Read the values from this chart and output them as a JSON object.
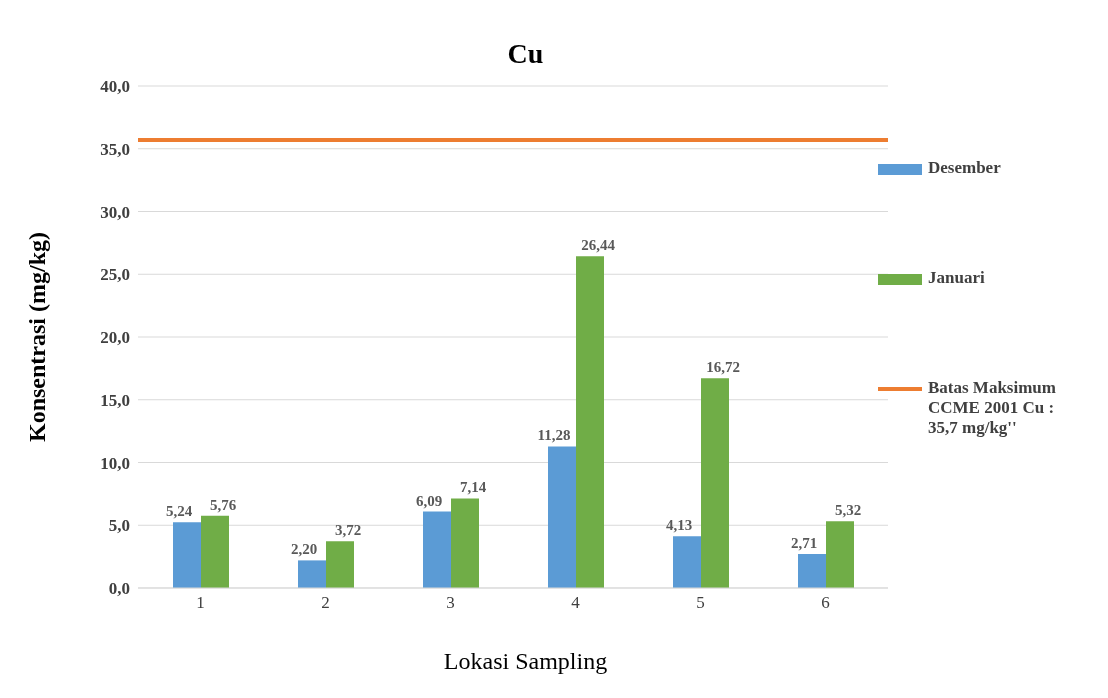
{
  "chart_data": {
    "type": "bar",
    "title": "Cu",
    "xlabel": "Lokasi Sampling",
    "ylabel": "Konsentrasi (mg/kg)",
    "categories": [
      "1",
      "2",
      "3",
      "4",
      "5",
      "6"
    ],
    "series": [
      {
        "name": "Desember",
        "color": "#5b9bd5",
        "values": [
          5.24,
          2.2,
          6.09,
          11.28,
          4.13,
          2.71
        ],
        "value_labels": [
          "5,24",
          "2,20",
          "6,09",
          "11,28",
          "4,13",
          "2,71"
        ]
      },
      {
        "name": "Januari",
        "color": "#70ad47",
        "values": [
          5.76,
          3.72,
          7.14,
          26.44,
          16.72,
          5.32
        ],
        "value_labels": [
          "5,76",
          "3,72",
          "7,14",
          "26,44",
          "16,72",
          "5,32"
        ]
      }
    ],
    "ref_lines": [
      {
        "axis": "y",
        "value": 35.7,
        "label": "Batas Maksimum CCME 2001 Cu : 35,7 mg/kg''",
        "color": "#ed7d31",
        "line_style": "solid"
      }
    ],
    "ylim": [
      0,
      40
    ],
    "yticks": [
      {
        "value": 0,
        "label": "0,0"
      },
      {
        "value": 5,
        "label": "5,0"
      },
      {
        "value": 10,
        "label": "10,0"
      },
      {
        "value": 15,
        "label": "15,0"
      },
      {
        "value": 20,
        "label": "20,0"
      },
      {
        "value": 25,
        "label": "25,0"
      },
      {
        "value": 30,
        "label": "30,0"
      },
      {
        "value": 35,
        "label": "35,0"
      },
      {
        "value": 40,
        "label": "40,0"
      }
    ],
    "grid": "y",
    "legend": "right"
  }
}
